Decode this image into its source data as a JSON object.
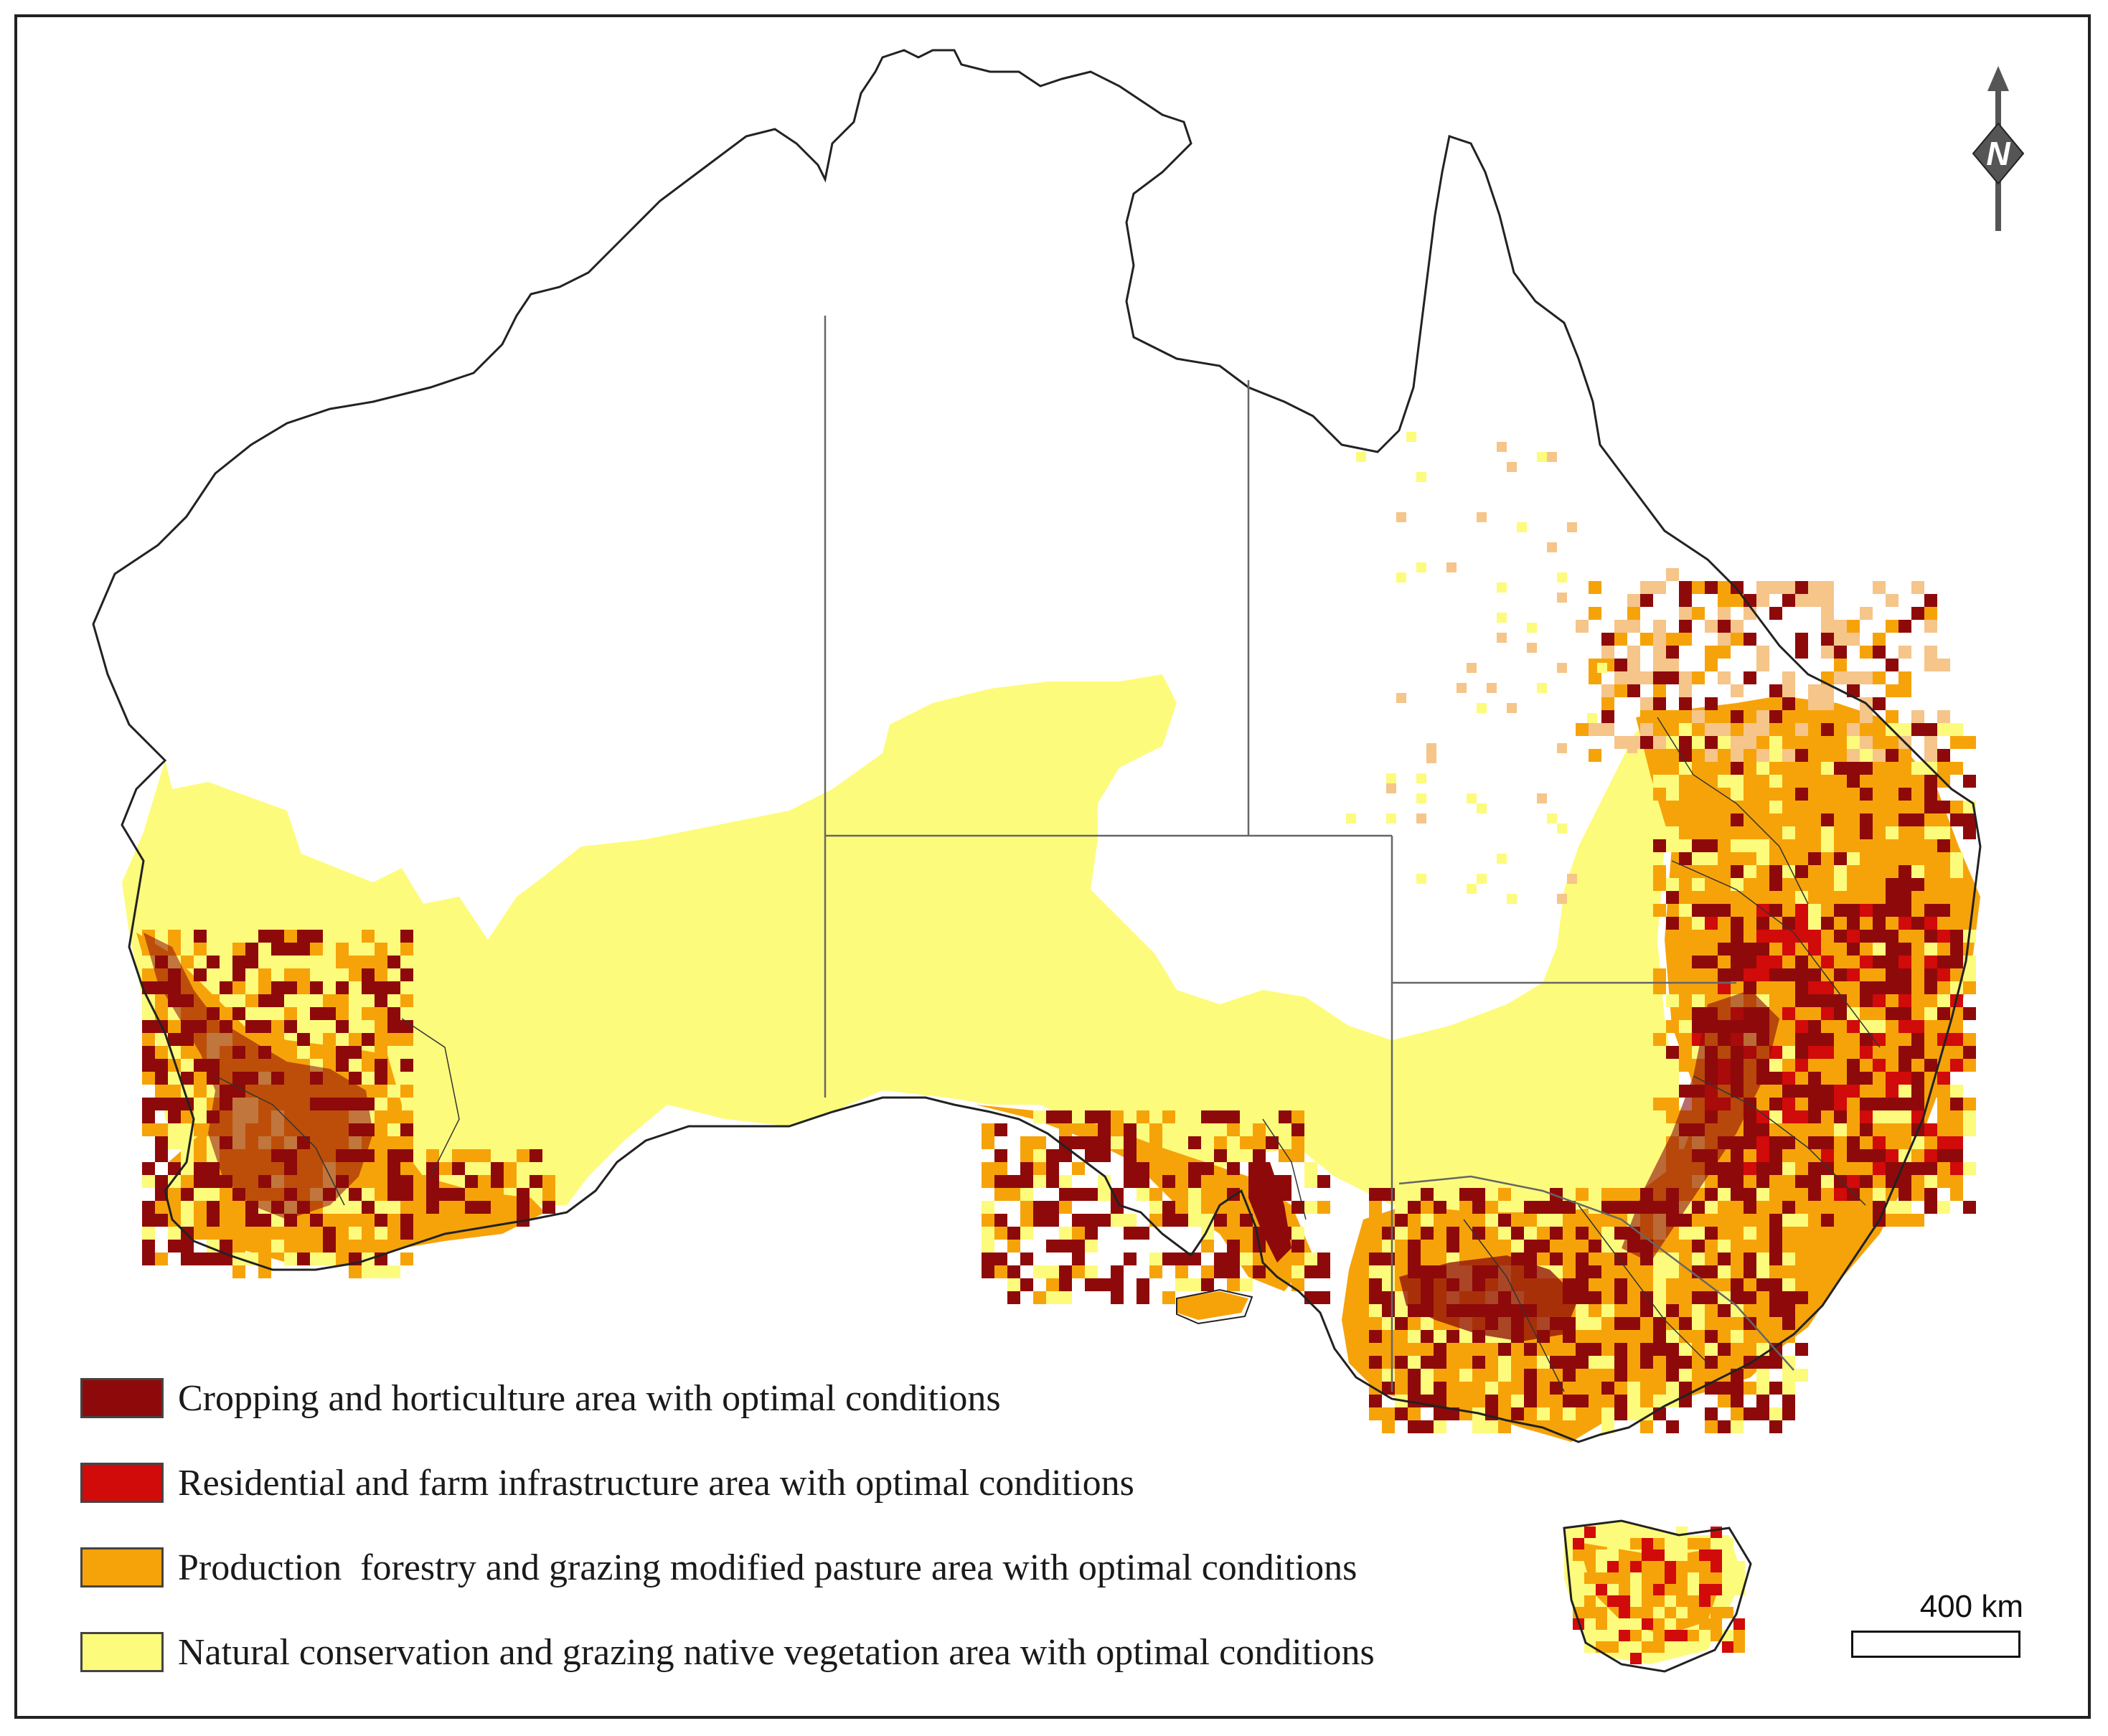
{
  "map": {
    "colors": {
      "background": "#ffffff",
      "outline": "#222222",
      "border": "#666666",
      "conservation": "#fdfb7c",
      "production": "#f6a30a",
      "cropping": "#8e0a0a",
      "residential": "#d10a0a",
      "light_production": "#f5c58a"
    },
    "legend": [
      {
        "label": "Cropping and horticulture area with optimal conditions",
        "color": "#8e0a0a"
      },
      {
        "label": "Residential and farm infrastructure area with optimal conditions",
        "color": "#d10a0a"
      },
      {
        "label": "Production  forestry and grazing modified pasture area with optimal conditions",
        "color": "#f6a30a"
      },
      {
        "label": "Natural conservation and grazing native vegetation area with optimal conditions",
        "color": "#fdfb7c"
      }
    ],
    "north_arrow": {
      "label": "N",
      "icon": "north-arrow-icon"
    },
    "scale_bar": {
      "label": "400 km"
    }
  }
}
